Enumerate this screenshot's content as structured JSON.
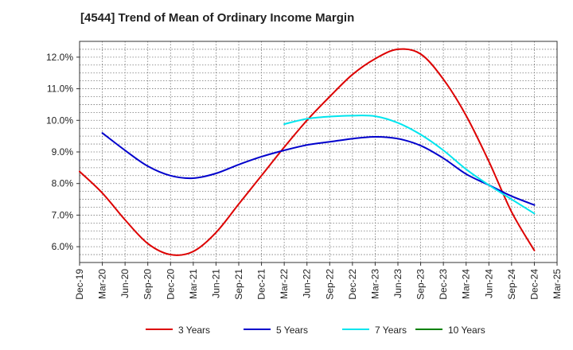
{
  "chart_data": {
    "type": "line",
    "title": "[4544]  Trend of Mean of Ordinary Income Margin",
    "xlabel": "",
    "ylabel": "",
    "categories": [
      "Dec-19",
      "Mar-20",
      "Jun-20",
      "Sep-20",
      "Dec-20",
      "Mar-21",
      "Jun-21",
      "Sep-21",
      "Dec-21",
      "Mar-22",
      "Jun-22",
      "Sep-22",
      "Dec-22",
      "Mar-23",
      "Jun-23",
      "Sep-23",
      "Dec-23",
      "Mar-24",
      "Jun-24",
      "Sep-24",
      "Dec-24",
      "Mar-25"
    ],
    "ylim": [
      5.5,
      12.5
    ],
    "yticks": [
      6.0,
      7.0,
      8.0,
      9.0,
      10.0,
      11.0,
      12.0
    ],
    "ytick_labels": [
      "6.0%",
      "7.0%",
      "8.0%",
      "9.0%",
      "10.0%",
      "11.0%",
      "12.0%"
    ],
    "grid": true,
    "legend_position": "bottom",
    "series": [
      {
        "name": "3 Years",
        "color": "#dd0000",
        "values": [
          8.38,
          7.7,
          6.85,
          6.1,
          5.75,
          5.85,
          6.45,
          7.35,
          8.25,
          9.15,
          10.0,
          10.75,
          11.45,
          11.95,
          12.25,
          12.1,
          11.3,
          10.15,
          8.7,
          7.1,
          5.88,
          null
        ]
      },
      {
        "name": "5 Years",
        "color": "#0000cc",
        "values": [
          null,
          9.6,
          9.05,
          8.55,
          8.25,
          8.17,
          8.32,
          8.6,
          8.85,
          9.05,
          9.22,
          9.32,
          9.42,
          9.48,
          9.42,
          9.2,
          8.8,
          8.3,
          7.95,
          7.6,
          7.32,
          null
        ]
      },
      {
        "name": "7 Years",
        "color": "#00e5ee",
        "values": [
          null,
          null,
          null,
          null,
          null,
          null,
          null,
          null,
          null,
          9.88,
          10.05,
          10.12,
          10.15,
          10.13,
          9.92,
          9.55,
          9.05,
          8.45,
          7.95,
          7.5,
          7.05,
          null
        ]
      },
      {
        "name": "10 Years",
        "color": "#008000",
        "values": [
          null,
          null,
          null,
          null,
          null,
          null,
          null,
          null,
          null,
          null,
          null,
          null,
          null,
          null,
          null,
          null,
          null,
          null,
          null,
          null,
          null,
          null
        ]
      }
    ]
  }
}
